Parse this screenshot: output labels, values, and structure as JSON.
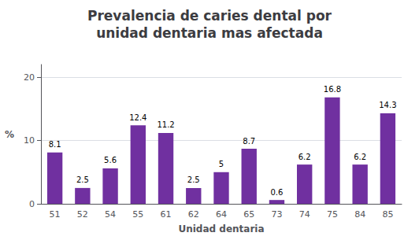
{
  "chart_data": {
    "type": "bar",
    "title": "Prevalencia de caries dental por\nunidad dentaria mas afectada",
    "x_label": "Unidad dentaria",
    "y_label": "%",
    "categories": [
      "51",
      "52",
      "54",
      "55",
      "61",
      "62",
      "64",
      "65",
      "73",
      "74",
      "75",
      "84",
      "85"
    ],
    "values": [
      8.1,
      2.5,
      5.6,
      12.4,
      11.2,
      2.5,
      5.0,
      8.7,
      0.6,
      6.2,
      16.8,
      6.2,
      14.3
    ],
    "color": "#7030A0",
    "ylim": [
      0,
      22
    ],
    "yticks": [
      0,
      10,
      20
    ],
    "grid": true,
    "data_labels": true
  }
}
